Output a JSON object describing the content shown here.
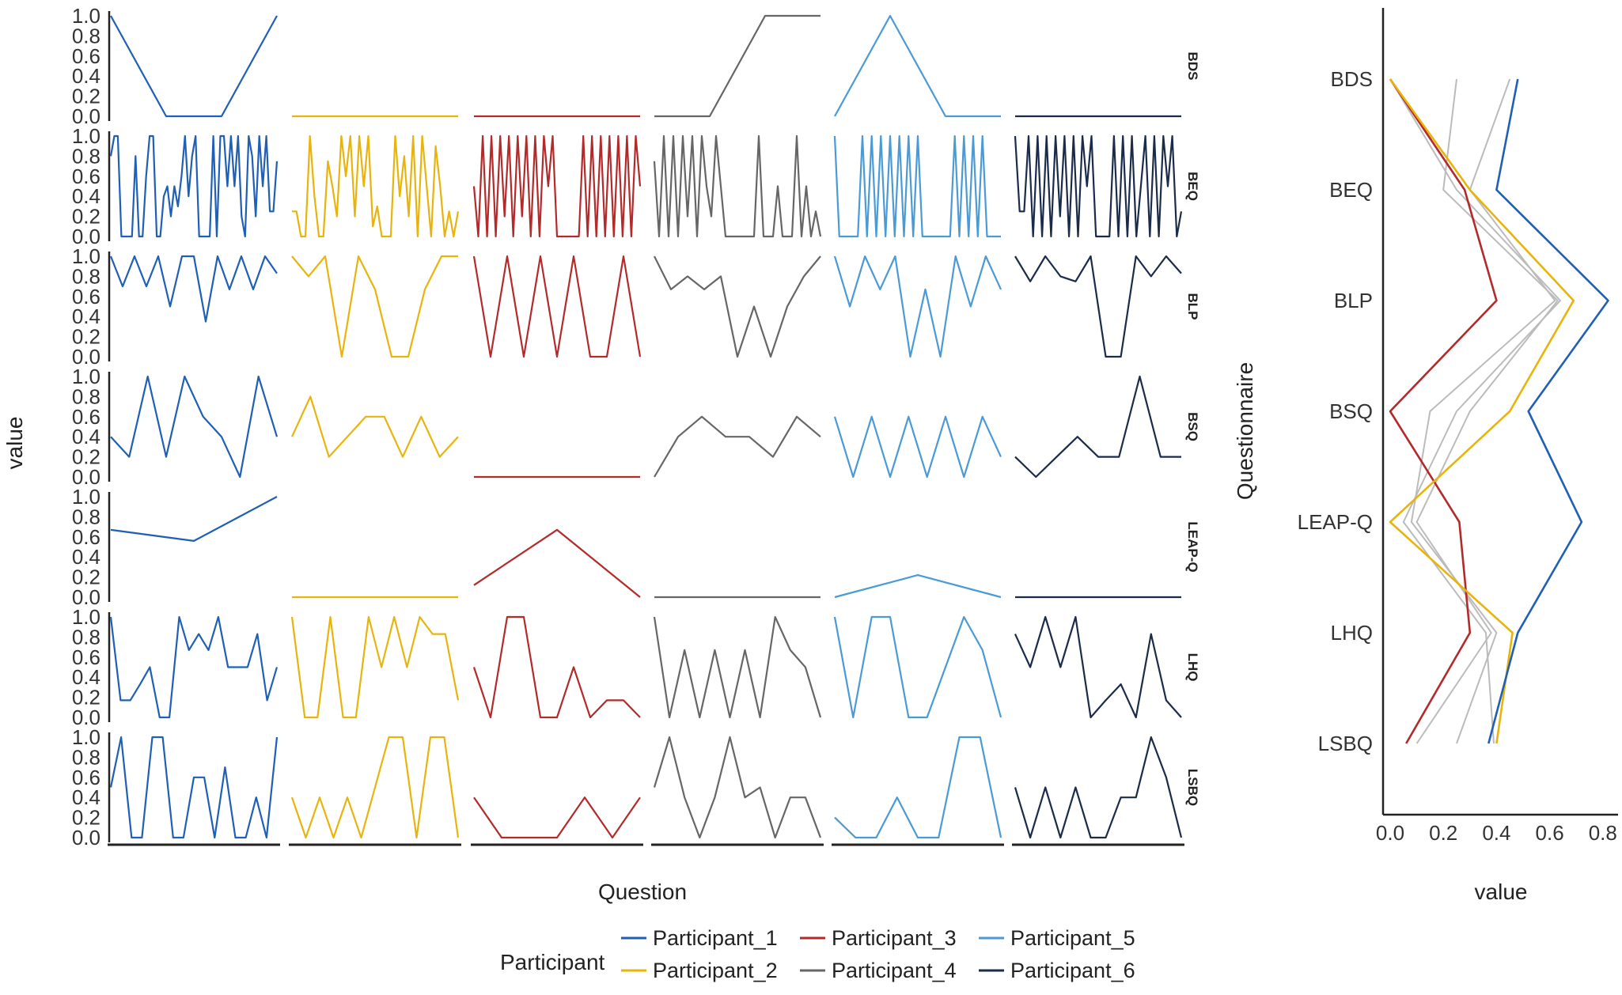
{
  "legend": {
    "title": "Participant",
    "entries": [
      {
        "name": "Participant_1",
        "color": "#1f5fb5"
      },
      {
        "name": "Participant_2",
        "color": "#e8b40c"
      },
      {
        "name": "Participant_3",
        "color": "#b32a2a"
      },
      {
        "name": "Participant_4",
        "color": "#666666"
      },
      {
        "name": "Participant_5",
        "color": "#4a9ad6"
      },
      {
        "name": "Participant_6",
        "color": "#1b2b4a"
      }
    ]
  },
  "chart_data": [
    {
      "type": "line",
      "title": "",
      "xlabel": "Question",
      "ylabel": "value",
      "ylim": [
        0,
        1
      ],
      "y_ticks": [
        "0.0",
        "0.2",
        "0.4",
        "0.6",
        "0.8",
        "1.0"
      ],
      "facet_rows": [
        "BDS",
        "BEQ",
        "BLP",
        "BSQ",
        "LEAP-Q",
        "LHQ",
        "LSBQ"
      ],
      "facet_columns": [
        "Participant_1",
        "Participant_2",
        "Participant_3",
        "Participant_4",
        "Participant_5",
        "Participant_6"
      ],
      "panels": {
        "BDS": [
          [
            1.0,
            0.0,
            0.0,
            1.0
          ],
          [
            0.0,
            0.0,
            0.0,
            0.0
          ],
          [
            0.0,
            0.0,
            0.0,
            0.0
          ],
          [
            0.0,
            0.0,
            1.0,
            1.0
          ],
          [
            0.0,
            1.0,
            0.0,
            0.0
          ],
          [
            0.0,
            0.0,
            0.0,
            0.0
          ]
        ],
        "BEQ": [
          [
            0.8,
            1,
            1,
            0,
            0,
            0,
            0,
            0.8,
            0,
            0,
            0.6,
            1,
            1,
            0,
            0,
            0.4,
            0.5,
            0.2,
            0.5,
            0.3,
            0.6,
            1,
            0.4,
            0.8,
            1,
            0,
            0,
            0,
            0,
            1,
            0,
            1,
            1,
            0.5,
            1,
            0.5,
            1,
            0.2,
            0,
            1,
            0.8,
            0.2,
            1,
            0.5,
            1,
            0.25,
            0.25,
            0.75
          ],
          [
            0.25,
            0.25,
            0,
            0,
            1,
            0.4,
            0,
            0,
            0.75,
            0.5,
            0.2,
            1,
            0.6,
            1,
            0.2,
            1,
            0.5,
            1,
            0.1,
            0.3,
            0,
            0,
            0,
            1,
            0.4,
            0.8,
            0.2,
            1,
            0,
            1,
            0.5,
            0,
            0.9,
            0.5,
            0,
            0.25,
            0,
            0.25
          ],
          [
            0.5,
            0,
            1,
            0,
            1,
            0,
            1,
            0.2,
            1,
            0,
            1,
            0.2,
            1,
            0,
            1,
            0,
            1,
            0.5,
            1,
            0,
            0,
            0,
            0,
            0,
            0,
            1,
            0,
            1,
            0,
            1,
            0,
            1,
            0,
            1,
            0,
            1,
            0,
            1,
            0.5
          ],
          [
            0.75,
            0,
            1,
            0,
            1,
            0,
            1,
            0.2,
            1,
            0,
            1,
            0.5,
            0.2,
            1,
            0.5,
            0,
            0,
            0,
            0,
            0,
            0,
            0,
            1,
            0,
            0,
            0,
            0.5,
            0,
            0,
            0,
            1,
            0,
            0.5,
            0,
            0.25,
            0
          ],
          [
            1,
            0,
            0,
            0,
            0,
            0,
            1,
            0,
            1,
            0,
            1,
            0,
            1,
            0,
            1,
            0,
            1,
            0,
            1,
            0,
            0,
            0,
            0,
            0,
            0,
            0,
            1,
            0,
            1,
            0,
            1,
            0,
            1,
            0,
            0,
            0,
            0
          ],
          [
            1,
            0.25,
            0.25,
            1,
            0,
            1,
            0,
            1,
            0,
            1,
            0.2,
            1,
            0,
            1,
            0,
            1,
            0.5,
            1,
            0,
            0,
            0,
            0,
            1,
            0,
            1,
            0,
            1,
            0,
            0.5,
            1,
            0,
            1,
            0,
            1,
            0.5,
            1,
            0,
            0.25
          ]
        ],
        "BLP": [
          [
            1,
            0.7,
            1,
            0.7,
            1,
            0.5,
            1,
            1,
            0.35,
            1,
            0.67,
            1,
            0.67,
            1,
            0.83
          ],
          [
            1,
            0.8,
            1,
            0,
            1,
            0.67,
            0,
            0,
            0.67,
            1,
            1
          ],
          [
            1,
            0,
            1,
            0,
            1,
            0,
            1,
            0,
            0,
            1,
            0
          ],
          [
            1,
            0.67,
            0.8,
            0.67,
            0.8,
            0,
            0.5,
            0,
            0.5,
            0.8,
            1
          ],
          [
            1,
            0.5,
            1,
            0.67,
            1,
            0,
            0.67,
            0,
            1,
            0.5,
            1,
            0.67
          ],
          [
            1,
            0.75,
            1,
            0.8,
            0.75,
            1,
            0,
            0,
            1,
            0.8,
            1,
            0.83
          ]
        ],
        "BSQ": [
          [
            0.4,
            0.2,
            1,
            0.2,
            1,
            0.6,
            0.4,
            0,
            1,
            0.4
          ],
          [
            0.4,
            0.8,
            0.2,
            0.4,
            0.6,
            0.6,
            0.2,
            0.6,
            0.2,
            0.4
          ],
          [
            0.0,
            0.0
          ],
          [
            0.0,
            0.4,
            0.6,
            0.4,
            0.4,
            0.2,
            0.6,
            0.4
          ],
          [
            0.6,
            0,
            0.6,
            0,
            0.6,
            0,
            0.6,
            0,
            0.6,
            0.2
          ],
          [
            0.2,
            0,
            0.2,
            0.4,
            0.2,
            0.2,
            1,
            0.2,
            0.2
          ]
        ],
        "LEAP-Q": [
          [
            0.67,
            0.56,
            1.0
          ],
          [
            0.0,
            0.0
          ],
          [
            0.12,
            0.67,
            0.0
          ],
          [
            0.0,
            0.0
          ],
          [
            0.0,
            0.22,
            0.0
          ],
          [
            0.0,
            0.0
          ]
        ],
        "LHQ": [
          [
            1,
            0.17,
            0.17,
            0.33,
            0.5,
            0,
            0,
            1,
            0.67,
            0.83,
            0.67,
            1,
            0.5,
            0.5,
            0.5,
            0.83,
            0.17,
            0.5
          ],
          [
            1,
            0,
            0,
            1,
            0,
            0,
            1,
            0.5,
            1,
            0.5,
            1,
            0.83,
            0.83,
            0.17
          ],
          [
            0.5,
            0,
            1,
            1,
            0,
            0,
            0.5,
            0,
            0.17,
            0.17,
            0
          ],
          [
            1,
            0,
            0.67,
            0,
            0.67,
            0,
            0.67,
            0,
            1,
            0.67,
            0.5,
            0
          ],
          [
            1,
            0,
            1,
            1,
            0,
            0,
            0.5,
            1,
            0.67,
            0
          ],
          [
            0.83,
            0.5,
            1,
            0.5,
            1,
            0,
            0.17,
            0.33,
            0,
            0.83,
            0.17,
            0
          ]
        ],
        "LSBQ": [
          [
            0.5,
            1,
            0,
            0,
            1,
            1,
            0,
            0,
            0.6,
            0.6,
            0,
            0.7,
            0,
            0,
            0.4,
            0,
            1
          ],
          [
            0.4,
            0,
            0.4,
            0,
            0.4,
            0,
            0.5,
            1,
            1,
            0,
            1,
            1,
            0
          ],
          [
            0.4,
            0,
            0,
            0,
            0.4,
            0,
            0.4
          ],
          [
            0.5,
            1,
            0.4,
            0,
            0.4,
            1,
            0.4,
            0.5,
            0,
            0.4,
            0.4,
            0
          ],
          [
            0.2,
            0,
            0,
            0.4,
            0,
            0,
            1,
            1,
            0
          ],
          [
            0.5,
            0,
            0.5,
            0,
            0.5,
            0,
            0,
            0.4,
            0.4,
            1,
            0.6,
            0
          ]
        ]
      }
    },
    {
      "type": "line",
      "title": "",
      "xlabel": "value",
      "ylabel": "Questionnaire",
      "xlim": [
        0,
        0.85
      ],
      "x_ticks": [
        "0.0",
        "0.2",
        "0.4",
        "0.6",
        "0.8"
      ],
      "categories": [
        "BDS",
        "BEQ",
        "BLP",
        "BSQ",
        "LEAP-Q",
        "LHQ",
        "LSBQ"
      ],
      "highlight_series": [
        {
          "name": "Participant_1",
          "color": "#1f5fb5",
          "values": [
            0.48,
            0.4,
            0.82,
            0.52,
            0.72,
            0.48,
            0.37
          ]
        },
        {
          "name": "Participant_2",
          "color": "#e8b40c",
          "values": [
            0.0,
            0.3,
            0.69,
            0.45,
            0.0,
            0.46,
            0.4
          ]
        },
        {
          "name": "Participant_3",
          "color": "#b32a2a",
          "values": [
            0.0,
            0.28,
            0.4,
            0.0,
            0.26,
            0.3,
            0.06
          ]
        }
      ],
      "background_series": [
        {
          "values": [
            0.25,
            0.2,
            0.63,
            0.3,
            0.1,
            0.38,
            0.1
          ],
          "color": "#bbbbbb"
        },
        {
          "values": [
            0.45,
            0.3,
            0.62,
            0.15,
            0.08,
            0.4,
            0.25
          ],
          "color": "#bbbbbb"
        },
        {
          "values": [
            0.0,
            0.25,
            0.64,
            0.25,
            0.05,
            0.36,
            0.39
          ],
          "color": "#bbbbbb"
        }
      ]
    }
  ]
}
